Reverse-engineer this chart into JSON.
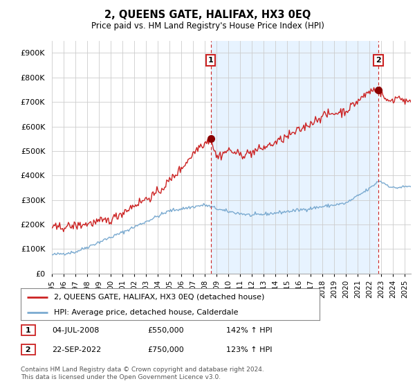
{
  "title": "2, QUEENS GATE, HALIFAX, HX3 0EQ",
  "subtitle": "Price paid vs. HM Land Registry's House Price Index (HPI)",
  "ylabel_ticks": [
    "£0",
    "£100K",
    "£200K",
    "£300K",
    "£400K",
    "£500K",
    "£600K",
    "£700K",
    "£800K",
    "£900K"
  ],
  "ytick_values": [
    0,
    100000,
    200000,
    300000,
    400000,
    500000,
    600000,
    700000,
    800000,
    900000
  ],
  "ylim": [
    0,
    950000
  ],
  "xlim_start": 1995.0,
  "xlim_end": 2025.5,
  "hpi_color": "#7aaad0",
  "price_color": "#cc2222",
  "shade_color": "#ddeeff",
  "vline_color": "#cc2222",
  "point1_x": 2008.5,
  "point1_y": 550000,
  "point2_x": 2022.73,
  "point2_y": 750000,
  "legend_label1": "2, QUEENS GATE, HALIFAX, HX3 0EQ (detached house)",
  "legend_label2": "HPI: Average price, detached house, Calderdale",
  "annotation1_num": "1",
  "annotation1_date": "04-JUL-2008",
  "annotation1_price": "£550,000",
  "annotation1_hpi": "142% ↑ HPI",
  "annotation2_num": "2",
  "annotation2_date": "22-SEP-2022",
  "annotation2_price": "£750,000",
  "annotation2_hpi": "123% ↑ HPI",
  "footer": "Contains HM Land Registry data © Crown copyright and database right 2024.\nThis data is licensed under the Open Government Licence v3.0.",
  "background_color": "#ffffff",
  "grid_color": "#cccccc"
}
